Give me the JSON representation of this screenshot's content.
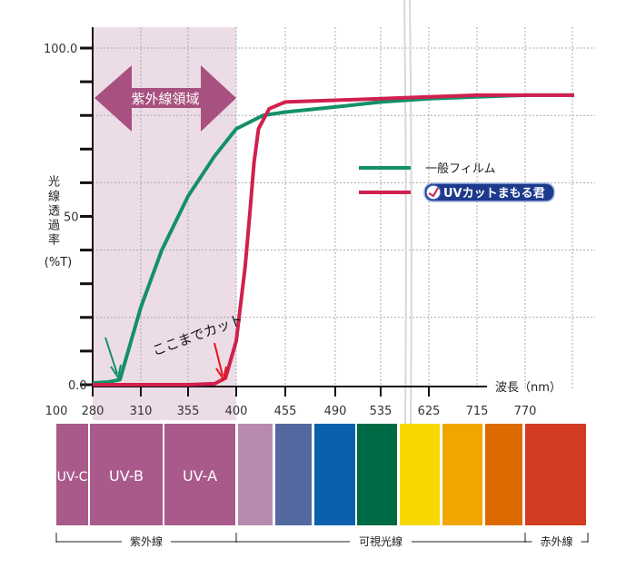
{
  "chart_data": {
    "type": "line",
    "ylabel": "光線透過率",
    "ylabel_unit": "(%T)",
    "xlabel": "波長（nm）",
    "ylim": [
      0,
      100
    ],
    "y_tick_labels": [
      "0.0",
      "50",
      "100.0"
    ],
    "y_minor_step": 10,
    "y_grid_step": 20,
    "x_tick_labels": [
      "100",
      "280",
      "310",
      "355",
      "400",
      "455",
      "490",
      "535",
      "625",
      "715",
      "770"
    ],
    "x_scale_note": "non-linear wavelength axis",
    "uv_region_label": "紫外線領域",
    "annotation": "ここまでカット",
    "legend_placement": "center-right",
    "series": [
      {
        "name": "一般フィルム",
        "color": "#13906a",
        "x": [
          280,
          290,
          297,
          310,
          330,
          355,
          380,
          400,
          430,
          455,
          490,
          535,
          625,
          715,
          770,
          825
        ],
        "y": [
          0.5,
          0.8,
          1.5,
          23,
          40,
          56,
          68,
          76,
          80,
          81,
          82.5,
          84,
          85,
          85.5,
          86,
          86
        ]
      },
      {
        "name": "UVカットまもる君",
        "color": "#d0204e",
        "x": [
          280,
          355,
          380,
          390,
          400,
          410,
          415,
          420,
          425,
          437,
          455,
          490,
          535,
          625,
          715,
          770,
          825
        ],
        "y": [
          0,
          0,
          0.3,
          2,
          13,
          35,
          50,
          66,
          76,
          82,
          84,
          84.5,
          85,
          85.5,
          86,
          86,
          86
        ]
      }
    ]
  },
  "spectrum": {
    "bands": [
      {
        "label": "UV-C",
        "color": "#a95a8a"
      },
      {
        "label": "UV-B",
        "color": "#a95a8a"
      },
      {
        "label": "UV-A",
        "color": "#a95a8a"
      },
      {
        "label": "",
        "color": "#b88aae"
      },
      {
        "label": "",
        "color": "#5468a0"
      },
      {
        "label": "",
        "color": "#0b60ad"
      },
      {
        "label": "",
        "color": "#006a44"
      },
      {
        "label": "",
        "color": "#f7d700"
      },
      {
        "label": "",
        "color": "#f0a600"
      },
      {
        "label": "",
        "color": "#dc6a00"
      },
      {
        "label": "",
        "color": "#d13c22"
      }
    ],
    "groups": [
      "紫外線",
      "可視光線",
      "赤外線"
    ]
  },
  "colors": {
    "uv_region_bg": "#ecdce6",
    "uv_arrow": "#a8507f",
    "axis": "#111111",
    "grid": "#aaaaaa"
  }
}
